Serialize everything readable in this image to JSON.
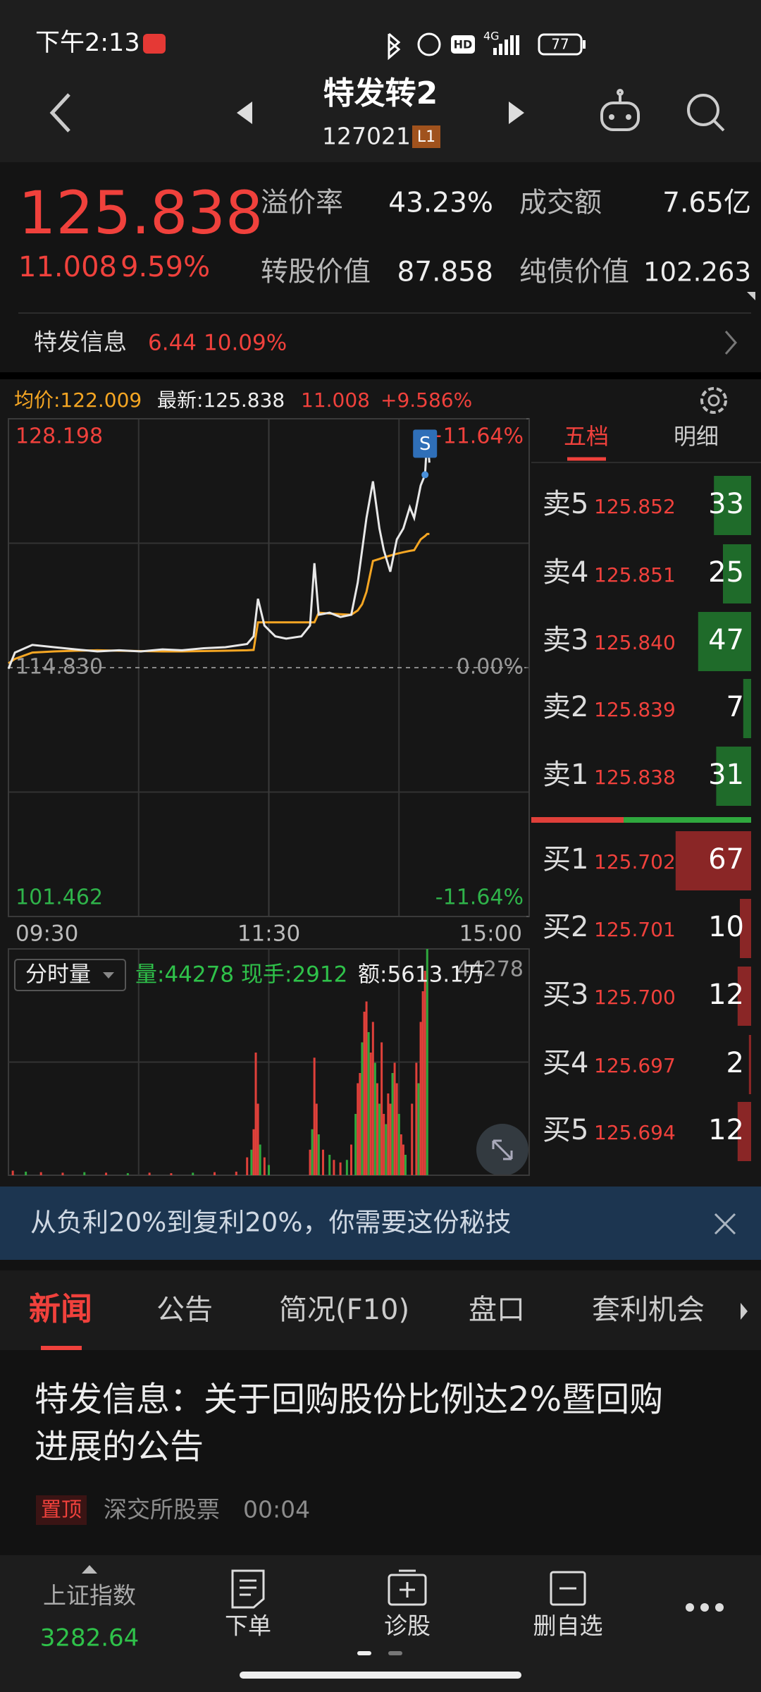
{
  "status_bar": {
    "time": "下午2:13",
    "hd": "HD",
    "network": "4G",
    "battery": "77"
  },
  "header": {
    "title": "特发转2",
    "code": "127021",
    "badge": "L1"
  },
  "quote": {
    "price": "125.838",
    "change": "11.008",
    "change_pct": "9.59%",
    "metrics": [
      {
        "label": "溢价率",
        "value": "43.23%"
      },
      {
        "label": "成交额",
        "value": "7.65亿"
      },
      {
        "label": "转股价值",
        "value": "87.858"
      },
      {
        "label": "纯债价值",
        "value": "102.263"
      }
    ]
  },
  "underlying": {
    "name": "特发信息",
    "price": "6.44",
    "change_pct": "10.09%"
  },
  "chart_header": {
    "avg": "均价:122.009",
    "latest": "最新:125.838",
    "change": "11.008",
    "change_pct": "+9.586%"
  },
  "chart_data": [
    {
      "type": "line",
      "xlim": [
        0,
        240
      ],
      "xticks": [
        {
          "value": 0,
          "label": "09:30"
        },
        {
          "value": 120,
          "label": "11:30"
        },
        {
          "value": 240,
          "label": "15:00"
        }
      ],
      "ylim": [
        101.462,
        128.198
      ],
      "yticks": [
        128.198,
        {
          "value": 114.83,
          "label": "114.830"
        },
        101.462
      ],
      "y2lim": [
        -11.64,
        11.64
      ],
      "y2ticks": [
        {
          "value": 11.64,
          "label": "+11.64%"
        },
        {
          "value": 0,
          "label": "0.00%"
        },
        {
          "value": -11.64,
          "label": "-11.64%"
        }
      ],
      "tick_colors": [
        "#f0413c",
        "#9a9a9a",
        "#2fb34a"
      ],
      "marker": "S",
      "x": [
        0,
        3,
        11,
        21,
        31,
        41,
        51,
        61,
        71,
        80,
        90,
        100,
        110,
        113,
        115,
        118,
        123,
        128,
        135,
        139,
        141,
        143,
        148,
        153,
        158,
        161,
        163,
        165,
        168,
        171,
        173,
        176,
        179,
        182,
        185,
        187,
        190,
        192,
        193,
        194
      ],
      "series": [
        {
          "color": "#e8e8e8",
          "values": [
            114.77,
            115.64,
            116.05,
            115.93,
            115.81,
            115.7,
            115.76,
            115.7,
            115.81,
            115.76,
            115.87,
            115.93,
            116.1,
            116.51,
            118.53,
            117.09,
            116.51,
            116.39,
            116.51,
            117.09,
            120.44,
            117.67,
            117.78,
            117.55,
            117.67,
            119.4,
            121.14,
            122.87,
            124.84,
            122.3,
            121.14,
            119.98,
            121.72,
            122.3,
            123.45,
            122.87,
            124.61,
            125.19,
            127.21,
            125.84
          ]
        },
        {
          "color": "#f5a623",
          "values": [
            115.06,
            115.3,
            115.64,
            115.7,
            115.74,
            115.76,
            115.74,
            115.72,
            115.7,
            115.7,
            115.72,
            115.74,
            115.76,
            115.78,
            117.26,
            117.26,
            117.26,
            117.26,
            117.26,
            117.26,
            117.26,
            117.78,
            117.74,
            117.7,
            117.67,
            117.9,
            118.24,
            118.9,
            120.56,
            120.67,
            120.75,
            120.85,
            120.95,
            121.03,
            121.1,
            121.14,
            121.72,
            121.9,
            122.01,
            122.01
          ]
        }
      ]
    },
    {
      "type": "bar",
      "label": "分时量",
      "stats": [
        "量:44278",
        "现手:2912",
        "额:5613.1万"
      ],
      "xlim": [
        0,
        240
      ],
      "ylim": [
        0,
        44278
      ],
      "yticks": [
        44278
      ],
      "x": [
        2,
        8,
        15,
        25,
        35,
        45,
        55,
        65,
        75,
        85,
        95,
        105,
        110,
        112,
        113,
        114,
        115,
        116,
        118,
        120,
        139,
        140,
        141,
        142,
        143,
        145,
        148,
        150,
        153,
        156,
        158,
        160,
        161,
        162,
        163,
        164,
        165,
        166,
        167,
        168,
        169,
        170,
        171,
        172,
        173,
        174,
        175,
        176,
        177,
        178,
        179,
        180,
        181,
        182,
        183,
        186,
        188,
        189,
        190,
        191,
        192,
        193
      ],
      "values": [
        900,
        700,
        600,
        500,
        600,
        500,
        400,
        500,
        400,
        500,
        600,
        700,
        3500,
        5000,
        9000,
        24000,
        14000,
        6000,
        3500,
        2000,
        5000,
        9000,
        23000,
        14000,
        8000,
        5000,
        4000,
        3000,
        2500,
        3000,
        6000,
        12000,
        18000,
        20000,
        26000,
        32000,
        34000,
        28000,
        24000,
        30000,
        22000,
        18000,
        14000,
        26000,
        12000,
        10000,
        16000,
        14000,
        20000,
        22000,
        18000,
        12000,
        8000,
        6000,
        4000,
        14000,
        22000,
        18000,
        30000,
        36000,
        40000,
        44278
      ],
      "colors": [
        "#e0403a",
        "#2fa83e",
        "#e0403a",
        "#e0403a",
        "#2fa83e",
        "#e0403a",
        "#2fa83e",
        "#e0403a",
        "#e0403a",
        "#2fa83e",
        "#e0403a",
        "#e0403a",
        "#e0403a",
        "#2fa83e",
        "#e0403a",
        "#e0403a",
        "#e0403a",
        "#2fa83e",
        "#e0403a",
        "#2fa83e",
        "#e0403a",
        "#2fa83e",
        "#e0403a",
        "#e0403a",
        "#2fa83e",
        "#e0403a",
        "#2fa83e",
        "#e0403a",
        "#e0403a",
        "#2fa83e",
        "#e0403a",
        "#2fa83e",
        "#e0403a",
        "#e0403a",
        "#2fa83e",
        "#e0403a",
        "#e0403a",
        "#2fa83e",
        "#e0403a",
        "#e0403a",
        "#2fa83e",
        "#e0403a",
        "#2fa83e",
        "#e0403a",
        "#e0403a",
        "#2fa83e",
        "#e0403a",
        "#e0403a",
        "#2fa83e",
        "#e0403a",
        "#e0403a",
        "#2fa83e",
        "#e0403a",
        "#e0403a",
        "#2fa83e",
        "#e0403a",
        "#e0403a",
        "#2fa83e",
        "#e0403a",
        "#e0403a",
        "#e0403a",
        "#2fa83e"
      ]
    }
  ],
  "order_book": {
    "tabs": [
      "五档",
      "明细"
    ],
    "sells": [
      {
        "label": "卖5",
        "price": "125.852",
        "qty": 33
      },
      {
        "label": "卖4",
        "price": "125.851",
        "qty": 25
      },
      {
        "label": "卖3",
        "price": "125.840",
        "qty": 47
      },
      {
        "label": "卖2",
        "price": "125.839",
        "qty": 7
      },
      {
        "label": "卖1",
        "price": "125.838",
        "qty": 31
      }
    ],
    "buys": [
      {
        "label": "买1",
        "price": "125.702",
        "qty": 67
      },
      {
        "label": "买2",
        "price": "125.701",
        "qty": 10
      },
      {
        "label": "买3",
        "price": "125.700",
        "qty": 12
      },
      {
        "label": "买4",
        "price": "125.697",
        "qty": 2
      },
      {
        "label": "买5",
        "price": "125.694",
        "qty": 12
      }
    ]
  },
  "banner": {
    "text": "从负利20%到复利20%，你需要这份秘技"
  },
  "news_tabs": [
    "新闻",
    "公告",
    "简况(F10)",
    "盘口",
    "套利机会"
  ],
  "news": [
    {
      "title": "特发信息：关于回购股份比例达2%暨回购进展的公告",
      "tag": "置顶",
      "source": "深交所股票",
      "time": "00:04"
    }
  ],
  "bottom_nav": {
    "index_name": "上证指数",
    "index_value": "3282.64",
    "items": [
      "下单",
      "诊股",
      "删自选"
    ]
  }
}
